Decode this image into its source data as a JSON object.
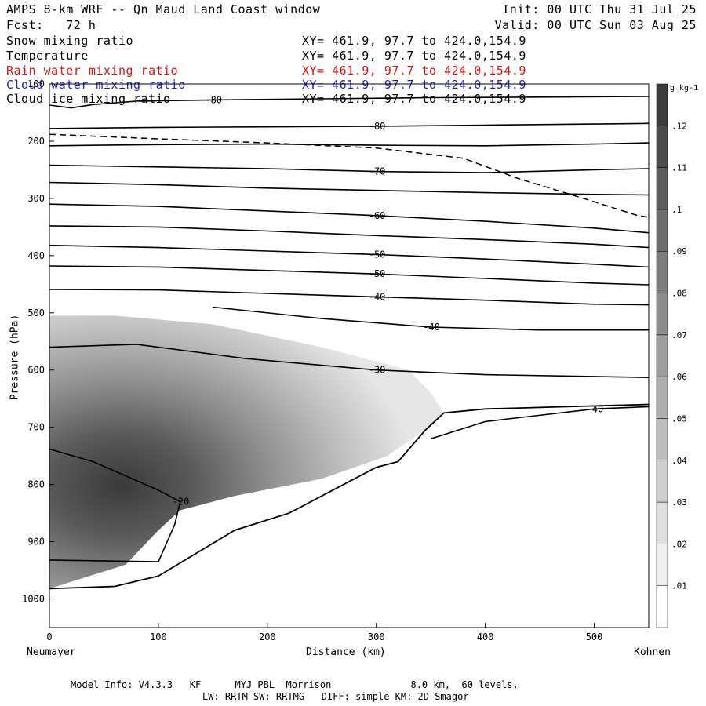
{
  "header": {
    "title": "AMPS 8-km WRF -- Qn Maud Land Coast window",
    "init": "Init: 00 UTC Thu 31 Jul 25",
    "fcst": "Fcst:   72 h",
    "valid": "Valid: 00 UTC Sun 03 Aug 25"
  },
  "fields": [
    {
      "name": "Snow mixing ratio",
      "xy": "XY= 461.9, 97.7 to 424.0,154.9",
      "color": "#000000"
    },
    {
      "name": "Temperature",
      "xy": "XY= 461.9, 97.7 to 424.0,154.9",
      "color": "#000000"
    },
    {
      "name": "Rain water mixing ratio",
      "xy": "XY= 461.9, 97.7 to 424.0,154.9",
      "color": "#e01010"
    },
    {
      "name": "Cloud water mixing ratio",
      "xy": "XY= 461.9, 97.7 to 424.0,154.9",
      "color": "#2020c0"
    },
    {
      "name": "Cloud ice mixing ratio",
      "xy": "XY= 461.9, 97.7 to 424.0,154.9",
      "color": "#000000"
    }
  ],
  "chart_data": {
    "type": "heatmap",
    "xlabel": "Distance (km)",
    "ylabel": "Pressure (hPa)",
    "x_start_label": "Neumayer",
    "x_end_label": "Kohnen",
    "xlim": [
      0,
      550
    ],
    "ylim": [
      1050,
      100
    ],
    "x_ticks": [
      0,
      100,
      200,
      300,
      400,
      500
    ],
    "y_ticks": [
      100,
      200,
      300,
      400,
      500,
      600,
      700,
      800,
      900,
      1000
    ],
    "colorbar": {
      "unit": "g kg-1",
      "levels": [
        0.01,
        0.02,
        0.03,
        0.04,
        0.05,
        0.06,
        0.07,
        0.08,
        0.09,
        0.1,
        0.11,
        0.12
      ],
      "tick_labels": [
        ".01",
        ".02",
        ".03",
        ".04",
        ".05",
        ".06",
        ".07",
        ".08",
        ".09",
        ".1",
        ".11",
        ".12"
      ]
    },
    "temperature_contours": [
      {
        "label": "-80",
        "points": [
          [
            0,
            137
          ],
          [
            20,
            142
          ],
          [
            40,
            136
          ],
          [
            80,
            130
          ],
          [
            150,
            128
          ],
          [
            250,
            126
          ],
          [
            350,
            124
          ],
          [
            450,
            123
          ],
          [
            550,
            122
          ]
        ]
      },
      {
        "label": "-80",
        "points": [
          [
            0,
            178
          ],
          [
            100,
            176
          ],
          [
            200,
            175
          ],
          [
            300,
            174
          ],
          [
            400,
            172
          ],
          [
            500,
            170
          ],
          [
            550,
            169
          ]
        ]
      },
      {
        "label": "",
        "points": [
          [
            0,
            208
          ],
          [
            100,
            206
          ],
          [
            200,
            205
          ],
          [
            300,
            207
          ],
          [
            400,
            208
          ],
          [
            500,
            205
          ],
          [
            550,
            203
          ]
        ]
      },
      {
        "label": "-70",
        "points": [
          [
            0,
            242
          ],
          [
            100,
            245
          ],
          [
            200,
            248
          ],
          [
            300,
            253
          ],
          [
            400,
            255
          ],
          [
            500,
            250
          ],
          [
            550,
            248
          ]
        ]
      },
      {
        "label": "",
        "points": [
          [
            0,
            272
          ],
          [
            100,
            276
          ],
          [
            200,
            282
          ],
          [
            300,
            286
          ],
          [
            400,
            290
          ],
          [
            500,
            293
          ],
          [
            550,
            294
          ]
        ]
      },
      {
        "label": "-60",
        "points": [
          [
            0,
            310
          ],
          [
            100,
            314
          ],
          [
            200,
            322
          ],
          [
            300,
            330
          ],
          [
            400,
            340
          ],
          [
            500,
            352
          ],
          [
            550,
            360
          ]
        ]
      },
      {
        "label": "",
        "points": [
          [
            0,
            348
          ],
          [
            100,
            350
          ],
          [
            200,
            357
          ],
          [
            300,
            365
          ],
          [
            400,
            372
          ],
          [
            500,
            380
          ],
          [
            550,
            386
          ]
        ]
      },
      {
        "label": "-50",
        "points": [
          [
            0,
            382
          ],
          [
            100,
            386
          ],
          [
            200,
            392
          ],
          [
            300,
            398
          ],
          [
            400,
            406
          ],
          [
            500,
            415
          ],
          [
            550,
            420
          ]
        ]
      },
      {
        "label": "-50",
        "points": [
          [
            0,
            418
          ],
          [
            100,
            420
          ],
          [
            200,
            426
          ],
          [
            300,
            432
          ],
          [
            400,
            440
          ],
          [
            500,
            448
          ],
          [
            550,
            451
          ]
        ]
      },
      {
        "label": "-40",
        "points": [
          [
            0,
            459
          ],
          [
            100,
            460
          ],
          [
            200,
            466
          ],
          [
            300,
            472
          ],
          [
            400,
            478
          ],
          [
            500,
            485
          ],
          [
            550,
            486
          ]
        ]
      },
      {
        "label": "-40",
        "points": [
          [
            150,
            490
          ],
          [
            250,
            510
          ],
          [
            350,
            525
          ],
          [
            450,
            530
          ],
          [
            550,
            530
          ]
        ]
      },
      {
        "label": "-30",
        "points": [
          [
            0,
            560
          ],
          [
            80,
            555
          ],
          [
            180,
            580
          ],
          [
            300,
            600
          ],
          [
            400,
            608
          ],
          [
            550,
            613
          ]
        ]
      },
      {
        "label": "-20",
        "points": [
          [
            0,
            738
          ],
          [
            40,
            760
          ],
          [
            100,
            810
          ],
          [
            120,
            830
          ],
          [
            115,
            870
          ],
          [
            100,
            935
          ],
          [
            0,
            932
          ]
        ]
      },
      {
        "label": "-40",
        "points": [
          [
            350,
            720
          ],
          [
            400,
            690
          ],
          [
            500,
            668
          ],
          [
            550,
            664
          ]
        ]
      }
    ],
    "freezing_dashed": {
      "label": "",
      "points": [
        [
          0,
          188
        ],
        [
          100,
          196
        ],
        [
          200,
          203
        ],
        [
          300,
          212
        ],
        [
          380,
          230
        ],
        [
          430,
          265
        ],
        [
          490,
          300
        ],
        [
          540,
          330
        ],
        [
          550,
          333
        ]
      ]
    }
  },
  "footer": {
    "line1": "Model Info: V4.3.3   KF      MYJ PBL  Morrison              8.0 km,  60 levels,",
    "line2": "LW: RRTM SW: RRTMG   DIFF: simple KM: 2D Smagor"
  }
}
